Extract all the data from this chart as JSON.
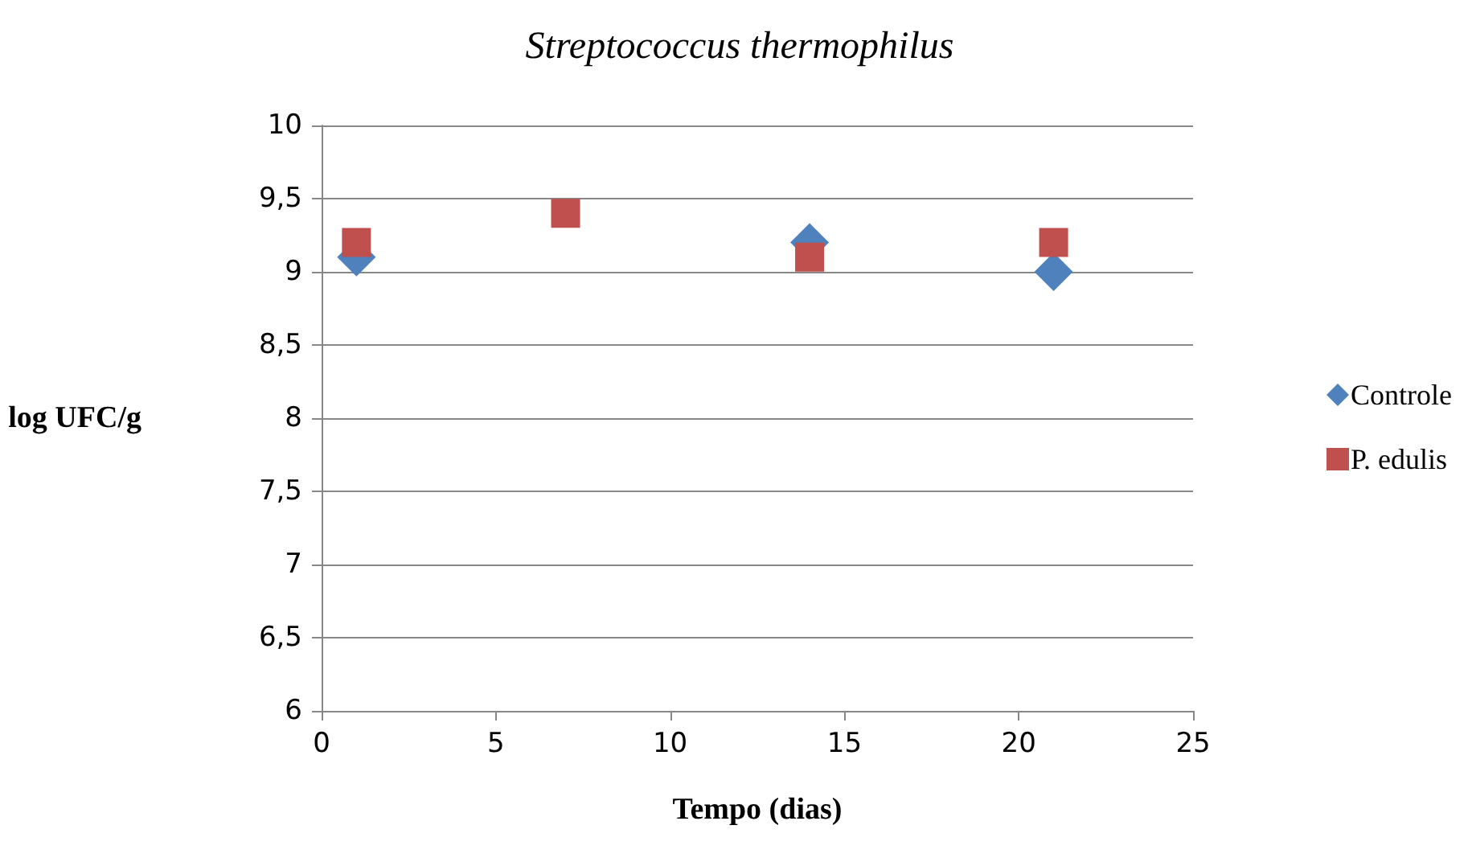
{
  "chart_data": {
    "type": "scatter",
    "title": "Streptococcus thermophilus",
    "xlabel": "Tempo (dias)",
    "ylabel": "log UFC/g",
    "x": [
      1,
      7,
      14,
      21
    ],
    "series": [
      {
        "name": "Controle",
        "color": "#4f81bd",
        "marker": "diamond",
        "values": [
          9.1,
          null,
          9.2,
          9.0
        ]
      },
      {
        "name": "P. edulis",
        "color": "#c0504d",
        "marker": "square",
        "values": [
          9.2,
          9.4,
          9.1,
          9.2
        ]
      }
    ],
    "xlim": [
      0,
      25
    ],
    "xticks": [
      0,
      5,
      10,
      15,
      20,
      25
    ],
    "ylim": [
      6,
      10
    ],
    "yticks": [
      6,
      {
        "value": 6.5,
        "label": "6,5"
      },
      7,
      {
        "value": 7.5,
        "label": "7,5"
      },
      8,
      {
        "value": 8.5,
        "label": "8,5"
      },
      9,
      {
        "value": 9.5,
        "label": "9,5"
      },
      10
    ],
    "grid": "y",
    "legend": "right"
  }
}
